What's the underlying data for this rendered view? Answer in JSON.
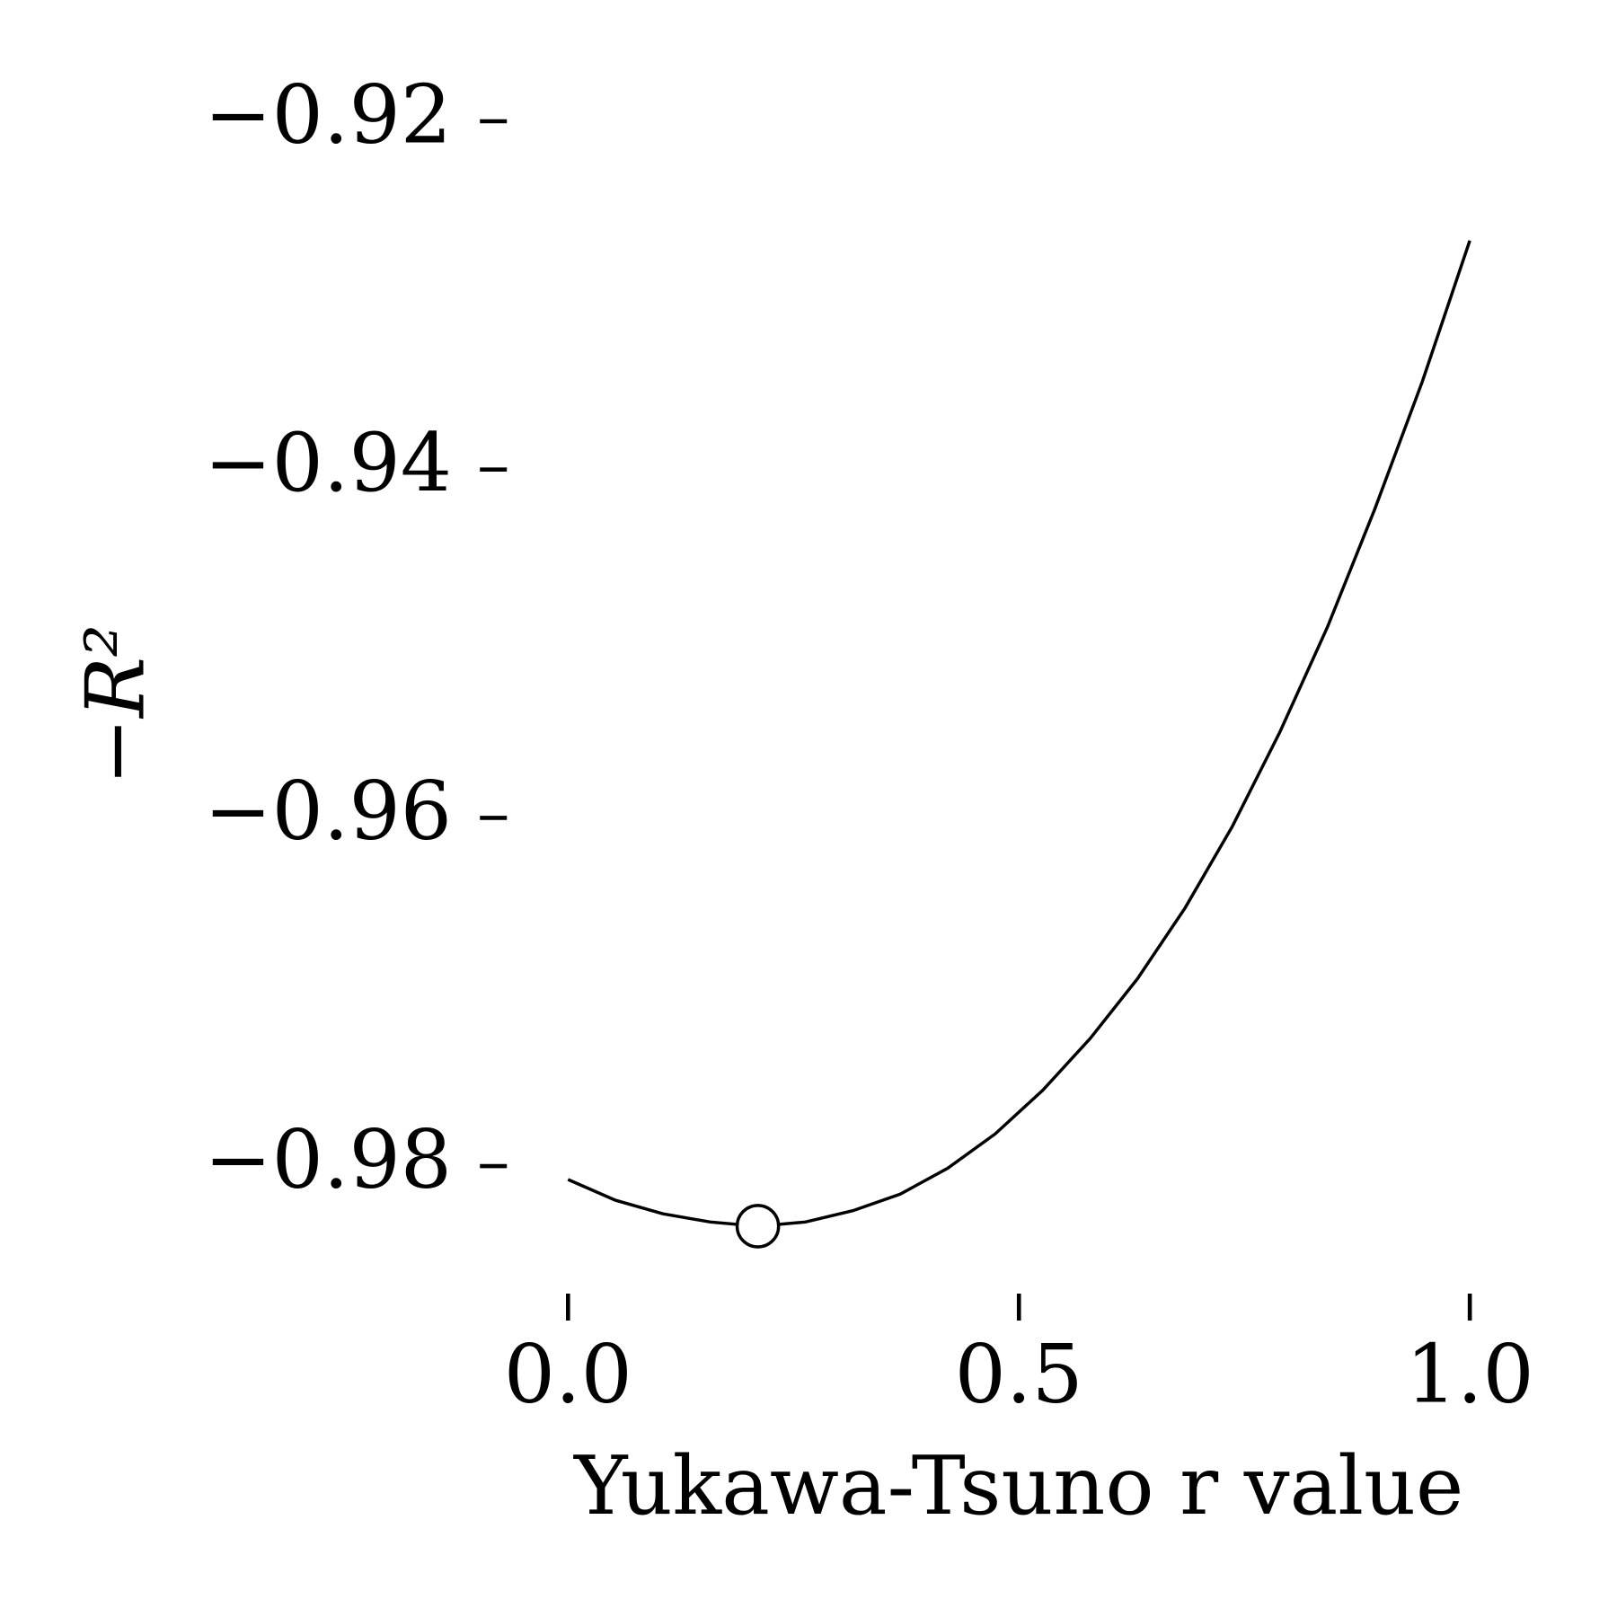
{
  "chart_data": {
    "type": "line",
    "xlabel": "Yukawa-Tsuno r value",
    "ylabel": "−R²",
    "x": [
      0,
      0.0526,
      0.1053,
      0.1579,
      0.2105,
      0.2632,
      0.3158,
      0.3684,
      0.4211,
      0.4737,
      0.5263,
      0.5789,
      0.6316,
      0.6842,
      0.7368,
      0.7895,
      0.8421,
      0.8947,
      0.9474,
      1
    ],
    "series": [
      {
        "color": "#000000",
        "values": [
          -0.98077,
          -0.98196,
          -0.98274,
          -0.98321,
          -0.98345,
          -0.98321,
          -0.98256,
          -0.98161,
          -0.98012,
          -0.97815,
          -0.97565,
          -0.97268,
          -0.96923,
          -0.96518,
          -0.96048,
          -0.95506,
          -0.94905,
          -0.94226,
          -0.93494,
          -0.92685
        ]
      }
    ],
    "marker": {
      "x": 0.2105,
      "y": -0.98345
    },
    "xlim": [
      -0.05,
      1.05
    ],
    "ylim": [
      -0.986,
      -0.918
    ],
    "xticks": [
      {
        "value": 0,
        "label": "0.0"
      },
      0.5,
      {
        "value": 1,
        "label": "1.0"
      }
    ],
    "yticks": [
      {
        "value": -0.92,
        "label": "−0.92"
      },
      {
        "value": -0.94,
        "label": "−0.94"
      },
      {
        "value": -0.96,
        "label": "−0.96"
      },
      {
        "value": -0.98,
        "label": "−0.98"
      }
    ],
    "grid": false
  }
}
